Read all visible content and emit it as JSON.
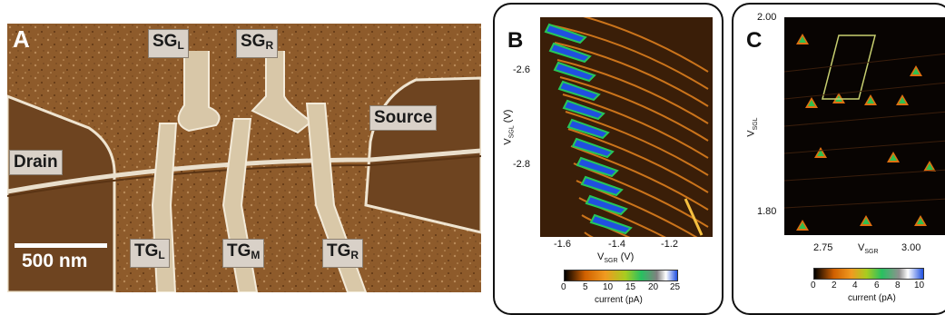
{
  "panel_a": {
    "label": "A",
    "gates": {
      "sgl": {
        "main": "SG",
        "sub": "L"
      },
      "sgr": {
        "main": "SG",
        "sub": "R"
      },
      "source": "Source",
      "drain": "Drain",
      "tgl": {
        "main": "TG",
        "sub": "L"
      },
      "tgm": {
        "main": "TG",
        "sub": "M"
      },
      "tgr": {
        "main": "TG",
        "sub": "R"
      }
    },
    "scale_bar": "500 nm"
  },
  "chart_data": [
    {
      "type": "heatmap",
      "panel": "B",
      "xlabel": {
        "main": "V",
        "sub": "SGR",
        "unit": " (V)"
      },
      "ylabel": {
        "main": "V",
        "sub": "SGL",
        "unit": " (V)"
      },
      "xlim": [
        -1.72,
        -1.08
      ],
      "ylim": [
        -2.94,
        -2.48
      ],
      "x_ticks": [
        "-1.6",
        "-1.4",
        "-1.2"
      ],
      "x_tick_values": [
        -1.6,
        -1.4,
        -1.2
      ],
      "y_ticks": [
        "-2.6",
        "-2.8"
      ],
      "y_tick_values": [
        -2.6,
        -2.8
      ],
      "colorbar": {
        "ticks": [
          "0",
          "5",
          "10",
          "15",
          "20",
          "25"
        ],
        "label": "current (pA)",
        "range": [
          0,
          25
        ]
      }
    },
    {
      "type": "heatmap",
      "panel": "C",
      "xlabel": {
        "main": "V",
        "sub": "SGR",
        "unit": ""
      },
      "ylabel": {
        "main": "V",
        "sub": "SGL",
        "unit": ""
      },
      "xlim": [
        2.65,
        3.1
      ],
      "ylim": [
        1.77,
        2.0
      ],
      "x_ticks": [
        "2.75",
        "3.00"
      ],
      "x_tick_values": [
        2.75,
        3.0
      ],
      "y_ticks": [
        "2.00",
        "1.80"
      ],
      "y_tick_values": [
        2.0,
        1.8
      ],
      "colorbar": {
        "ticks": [
          "0",
          "2",
          "4",
          "6",
          "8",
          "10"
        ],
        "label": "current (pA)",
        "range": [
          0,
          10
        ]
      }
    }
  ],
  "colors": {
    "afm": "#8a5a2a",
    "heat_bg_b": "#3a1e08",
    "heat_bg_c": "#080402",
    "line": "#f08a20",
    "diamond": "#c8d070"
  }
}
